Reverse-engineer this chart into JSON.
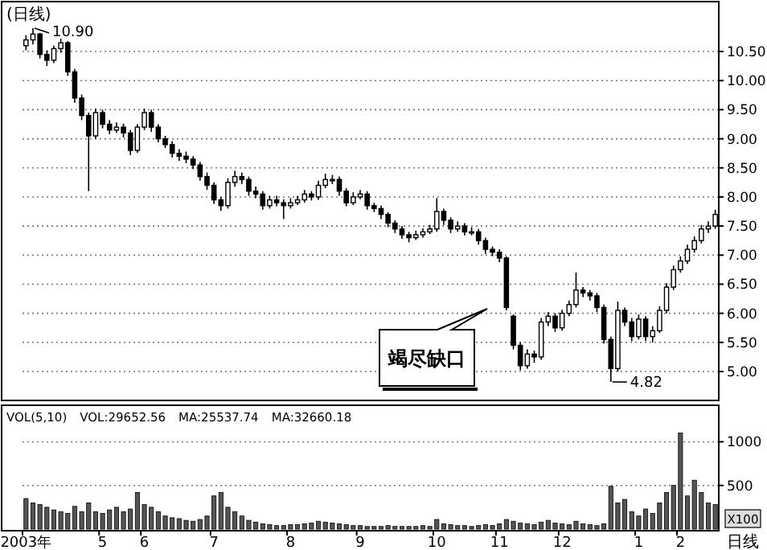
{
  "chart_data": [
    {
      "type": "candlestick",
      "title": "(日线)",
      "color": "#000000",
      "grid": "y",
      "tick_labels": "y",
      "ylim": [
        4.53,
        11.33
      ],
      "yticks": [
        {
          "value": 5,
          "label": "5.00"
        },
        {
          "value": 5.5,
          "label": "5.50"
        },
        {
          "value": 6,
          "label": "6.00"
        },
        {
          "value": 6.5,
          "label": "6.50"
        },
        {
          "value": 7,
          "label": "7.00"
        },
        {
          "value": 7.5,
          "label": "7.50"
        },
        {
          "value": 8,
          "label": "8.00"
        },
        {
          "value": 8.5,
          "label": "8.50"
        },
        {
          "value": 9,
          "label": "9.00"
        },
        {
          "value": 9.5,
          "label": "9.50"
        },
        {
          "value": 10,
          "label": "10.00"
        },
        {
          "value": 10.5,
          "label": "10.50"
        }
      ],
      "annotations": [
        "10.90",
        "4.82",
        "竭尽缺口"
      ],
      "categories": [
        null,
        null,
        null,
        null,
        null,
        null,
        null,
        null,
        null,
        null,
        null,
        null,
        null,
        null,
        null,
        null,
        null,
        null,
        null,
        null,
        null,
        null,
        null,
        null,
        null,
        null,
        null,
        null,
        null,
        null,
        null,
        null,
        null,
        null,
        null,
        null,
        null,
        null,
        null,
        null,
        null,
        null,
        null,
        null,
        null,
        null,
        null,
        null,
        null,
        null,
        null,
        null,
        null,
        null,
        null,
        null,
        null,
        null,
        null,
        null,
        null,
        null,
        null,
        null,
        null,
        null,
        null,
        null,
        null,
        null,
        null,
        null,
        null,
        null,
        null,
        null,
        null,
        null,
        null,
        null,
        null,
        null,
        null,
        null,
        null,
        null,
        null,
        null,
        null,
        null,
        null,
        null,
        null,
        null,
        null,
        null,
        null,
        null,
        null,
        null
      ],
      "ohlc": [
        [
          10.6,
          10.78,
          10.52,
          10.7
        ],
        [
          10.7,
          10.9,
          10.62,
          10.8
        ],
        [
          10.8,
          10.82,
          10.38,
          10.45
        ],
        [
          10.45,
          10.52,
          10.25,
          10.35
        ],
        [
          10.35,
          10.6,
          10.3,
          10.55
        ],
        [
          10.55,
          10.72,
          10.48,
          10.65
        ],
        [
          10.65,
          10.68,
          10.08,
          10.15
        ],
        [
          10.15,
          10.2,
          9.62,
          9.7
        ],
        [
          9.7,
          9.76,
          9.32,
          9.4
        ],
        [
          9.4,
          9.45,
          8.1,
          9.05
        ],
        [
          9.05,
          9.52,
          9.0,
          9.45
        ],
        [
          9.45,
          9.5,
          9.18,
          9.25
        ],
        [
          9.25,
          9.32,
          9.08,
          9.15
        ],
        [
          9.15,
          9.28,
          9.1,
          9.2
        ],
        [
          9.2,
          9.26,
          9.02,
          9.1
        ],
        [
          9.1,
          9.15,
          8.72,
          8.8
        ],
        [
          8.8,
          9.25,
          8.76,
          9.2
        ],
        [
          9.2,
          9.52,
          9.15,
          9.45
        ],
        [
          9.45,
          9.5,
          9.12,
          9.2
        ],
        [
          9.2,
          9.25,
          8.94,
          9.0
        ],
        [
          9.0,
          9.05,
          8.84,
          8.9
        ],
        [
          8.9,
          8.96,
          8.68,
          8.75
        ],
        [
          8.75,
          8.82,
          8.62,
          8.7
        ],
        [
          8.7,
          8.78,
          8.58,
          8.65
        ],
        [
          8.65,
          8.7,
          8.48,
          8.55
        ],
        [
          8.55,
          8.6,
          8.28,
          8.35
        ],
        [
          8.35,
          8.42,
          8.12,
          8.2
        ],
        [
          8.2,
          8.25,
          7.88,
          7.95
        ],
        [
          7.95,
          8.0,
          7.76,
          7.85
        ],
        [
          7.85,
          8.32,
          7.8,
          8.25
        ],
        [
          8.25,
          8.45,
          8.18,
          8.35
        ],
        [
          8.35,
          8.42,
          8.22,
          8.3
        ],
        [
          8.3,
          8.35,
          8.02,
          8.1
        ],
        [
          8.1,
          8.18,
          7.98,
          8.05
        ],
        [
          8.05,
          8.1,
          7.78,
          7.85
        ],
        [
          7.85,
          8.02,
          7.8,
          7.95
        ],
        [
          7.95,
          8.02,
          7.84,
          7.9
        ],
        [
          7.9,
          7.96,
          7.62,
          7.85
        ],
        [
          7.85,
          7.98,
          7.8,
          7.9
        ],
        [
          7.9,
          8.02,
          7.86,
          7.95
        ],
        [
          7.95,
          8.12,
          7.9,
          8.05
        ],
        [
          8.05,
          8.1,
          7.94,
          8.0
        ],
        [
          8.0,
          8.28,
          7.95,
          8.2
        ],
        [
          8.2,
          8.4,
          8.15,
          8.3
        ],
        [
          8.3,
          8.38,
          8.22,
          8.3
        ],
        [
          8.3,
          8.35,
          8.02,
          8.1
        ],
        [
          8.1,
          8.15,
          7.84,
          7.9
        ],
        [
          7.9,
          8.08,
          7.86,
          8.0
        ],
        [
          8.0,
          8.12,
          7.96,
          8.05
        ],
        [
          8.05,
          8.1,
          7.78,
          7.85
        ],
        [
          7.85,
          7.9,
          7.74,
          7.8
        ],
        [
          7.8,
          7.85,
          7.62,
          7.7
        ],
        [
          7.7,
          7.74,
          7.48,
          7.55
        ],
        [
          7.55,
          7.6,
          7.38,
          7.45
        ],
        [
          7.45,
          7.5,
          7.28,
          7.35
        ],
        [
          7.35,
          7.4,
          7.22,
          7.3
        ],
        [
          7.3,
          7.42,
          7.26,
          7.35
        ],
        [
          7.35,
          7.46,
          7.3,
          7.4
        ],
        [
          7.4,
          7.52,
          7.36,
          7.45
        ],
        [
          7.45,
          7.98,
          7.4,
          7.75
        ],
        [
          7.75,
          7.8,
          7.52,
          7.6
        ],
        [
          7.6,
          7.65,
          7.38,
          7.45
        ],
        [
          7.45,
          7.58,
          7.4,
          7.5
        ],
        [
          7.5,
          7.55,
          7.34,
          7.4
        ],
        [
          7.4,
          7.48,
          7.34,
          7.4
        ],
        [
          7.4,
          7.45,
          7.18,
          7.25
        ],
        [
          7.25,
          7.3,
          7.02,
          7.1
        ],
        [
          7.1,
          7.15,
          6.98,
          7.05
        ],
        [
          7.05,
          7.1,
          6.88,
          6.95
        ],
        [
          6.95,
          6.98,
          6.05,
          6.1
        ],
        [
          5.95,
          5.98,
          5.38,
          5.45
        ],
        [
          5.45,
          5.5,
          5.02,
          5.1
        ],
        [
          5.1,
          5.38,
          5.05,
          5.3
        ],
        [
          5.3,
          5.36,
          5.15,
          5.25
        ],
        [
          5.25,
          5.92,
          5.2,
          5.85
        ],
        [
          5.85,
          6.02,
          5.78,
          5.95
        ],
        [
          5.95,
          6.0,
          5.68,
          5.75
        ],
        [
          5.75,
          6.06,
          5.7,
          6.0
        ],
        [
          6.0,
          6.22,
          5.95,
          6.15
        ],
        [
          6.15,
          6.7,
          6.1,
          6.4
        ],
        [
          6.4,
          6.45,
          6.28,
          6.35
        ],
        [
          6.35,
          6.4,
          6.22,
          6.3
        ],
        [
          6.3,
          6.35,
          6.02,
          6.1
        ],
        [
          6.1,
          6.15,
          5.48,
          5.55
        ],
        [
          5.55,
          5.6,
          4.82,
          5.05
        ],
        [
          5.05,
          6.2,
          5.0,
          6.05
        ],
        [
          6.05,
          6.1,
          5.78,
          5.85
        ],
        [
          5.85,
          5.92,
          5.52,
          5.6
        ],
        [
          5.6,
          5.98,
          5.55,
          5.9
        ],
        [
          5.9,
          5.95,
          5.52,
          5.6
        ],
        [
          5.6,
          5.78,
          5.5,
          5.7
        ],
        [
          5.7,
          6.12,
          5.66,
          6.05
        ],
        [
          6.05,
          6.52,
          6.0,
          6.45
        ],
        [
          6.45,
          6.82,
          6.4,
          6.75
        ],
        [
          6.75,
          6.98,
          6.7,
          6.9
        ],
        [
          6.9,
          7.18,
          6.85,
          7.1
        ],
        [
          7.1,
          7.32,
          7.04,
          7.25
        ],
        [
          7.25,
          7.52,
          7.2,
          7.45
        ],
        [
          7.45,
          7.58,
          7.38,
          7.5
        ],
        [
          7.5,
          7.78,
          7.45,
          7.7
        ]
      ]
    },
    {
      "type": "bar",
      "color": "#555555",
      "grid": "y",
      "ylim": [
        0,
        1400
      ],
      "yticks": [
        500,
        1000
      ],
      "annotations": [
        "VOL(5,10)",
        "VOL:29652.56",
        "MA:25537.74",
        "MA:32660.18",
        "X100",
        "日线"
      ],
      "categories": [
        "2003年",
        null,
        null,
        null,
        null,
        null,
        null,
        null,
        null,
        null,
        null,
        "5",
        null,
        null,
        null,
        null,
        null,
        "6",
        null,
        null,
        null,
        null,
        null,
        null,
        null,
        null,
        null,
        "7",
        null,
        null,
        null,
        null,
        null,
        null,
        null,
        null,
        null,
        null,
        "8",
        null,
        null,
        null,
        null,
        null,
        null,
        null,
        null,
        null,
        "9",
        null,
        null,
        null,
        null,
        null,
        null,
        null,
        null,
        null,
        null,
        "10",
        null,
        null,
        null,
        null,
        null,
        null,
        null,
        null,
        "11",
        null,
        null,
        null,
        null,
        null,
        null,
        null,
        null,
        "12",
        null,
        null,
        null,
        null,
        null,
        null,
        null,
        null,
        null,
        null,
        "1",
        null,
        null,
        null,
        null,
        null,
        "2",
        null,
        null,
        null,
        null,
        null
      ],
      "values": [
        350,
        300,
        280,
        250,
        220,
        200,
        180,
        260,
        200,
        300,
        200,
        180,
        220,
        250,
        200,
        230,
        420,
        280,
        250,
        200,
        150,
        130,
        120,
        100,
        90,
        110,
        150,
        380,
        420,
        250,
        200,
        150,
        100,
        80,
        60,
        50,
        40,
        40,
        50,
        50,
        60,
        70,
        90,
        80,
        70,
        60,
        50,
        40,
        40,
        30,
        30,
        30,
        40,
        30,
        30,
        30,
        30,
        40,
        30,
        110,
        60,
        50,
        40,
        40,
        30,
        40,
        50,
        40,
        60,
        110,
        90,
        70,
        60,
        50,
        80,
        100,
        70,
        60,
        50,
        90,
        60,
        50,
        40,
        60,
        490,
        300,
        340,
        200,
        150,
        230,
        180,
        300,
        420,
        500,
        1100,
        380,
        560,
        420,
        300,
        280
      ]
    }
  ]
}
